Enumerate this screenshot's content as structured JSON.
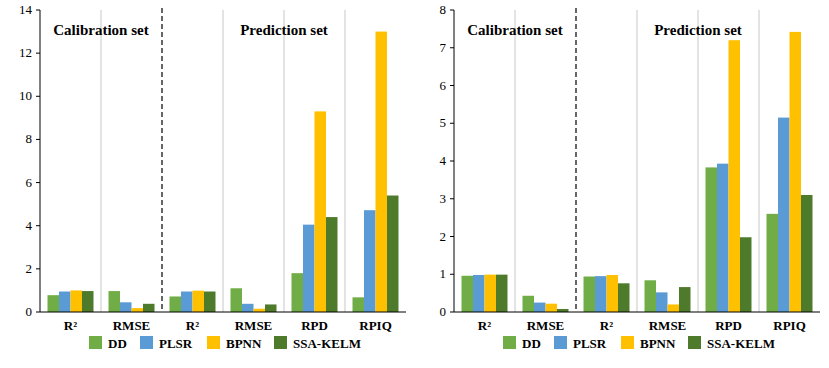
{
  "chart_data": [
    {
      "type": "bar",
      "categories": [
        "R²",
        "RMSE",
        "R²",
        "RMSE",
        "RPD",
        "RPIQ"
      ],
      "annotations": [
        "Calibration set",
        "Prediction set"
      ],
      "series": [
        {
          "name": "DD",
          "color": "#70ad47",
          "values": [
            0.78,
            0.97,
            0.72,
            1.1,
            1.8,
            0.68
          ]
        },
        {
          "name": "PLSR",
          "color": "#5b9bd5",
          "values": [
            0.95,
            0.45,
            0.95,
            0.38,
            4.05,
            4.72
          ]
        },
        {
          "name": "BPNN",
          "color": "#ffc000",
          "values": [
            1.0,
            0.18,
            0.99,
            0.15,
            9.3,
            13.0
          ]
        },
        {
          "name": "SSA-KELM",
          "color": "#4e7a2c",
          "values": [
            0.97,
            0.38,
            0.95,
            0.35,
            4.4,
            5.4
          ]
        }
      ],
      "ylim": [
        0,
        14
      ],
      "yticks": [
        0,
        2,
        4,
        6,
        8,
        10,
        12,
        14
      ],
      "grid": false,
      "legend": "bottom"
    },
    {
      "type": "bar",
      "categories": [
        "R²",
        "RMSE",
        "R²",
        "RMSE",
        "RPD",
        "RPIQ"
      ],
      "annotations": [
        "Calibration set",
        "Prediction set"
      ],
      "series": [
        {
          "name": "DD",
          "color": "#70ad47",
          "values": [
            0.96,
            0.43,
            0.94,
            0.84,
            3.83,
            2.6
          ]
        },
        {
          "name": "PLSR",
          "color": "#5b9bd5",
          "values": [
            0.98,
            0.25,
            0.95,
            0.52,
            3.93,
            5.15
          ]
        },
        {
          "name": "BPNN",
          "color": "#ffc000",
          "values": [
            0.99,
            0.22,
            0.98,
            0.2,
            7.2,
            7.42
          ]
        },
        {
          "name": "SSA-KELM",
          "color": "#4e7a2c",
          "values": [
            0.99,
            0.08,
            0.76,
            0.66,
            1.98,
            3.1
          ]
        }
      ],
      "ylim": [
        0,
        8
      ],
      "yticks": [
        0,
        1,
        2,
        3,
        4,
        5,
        6,
        7,
        8
      ],
      "grid": false,
      "legend": "bottom"
    }
  ]
}
